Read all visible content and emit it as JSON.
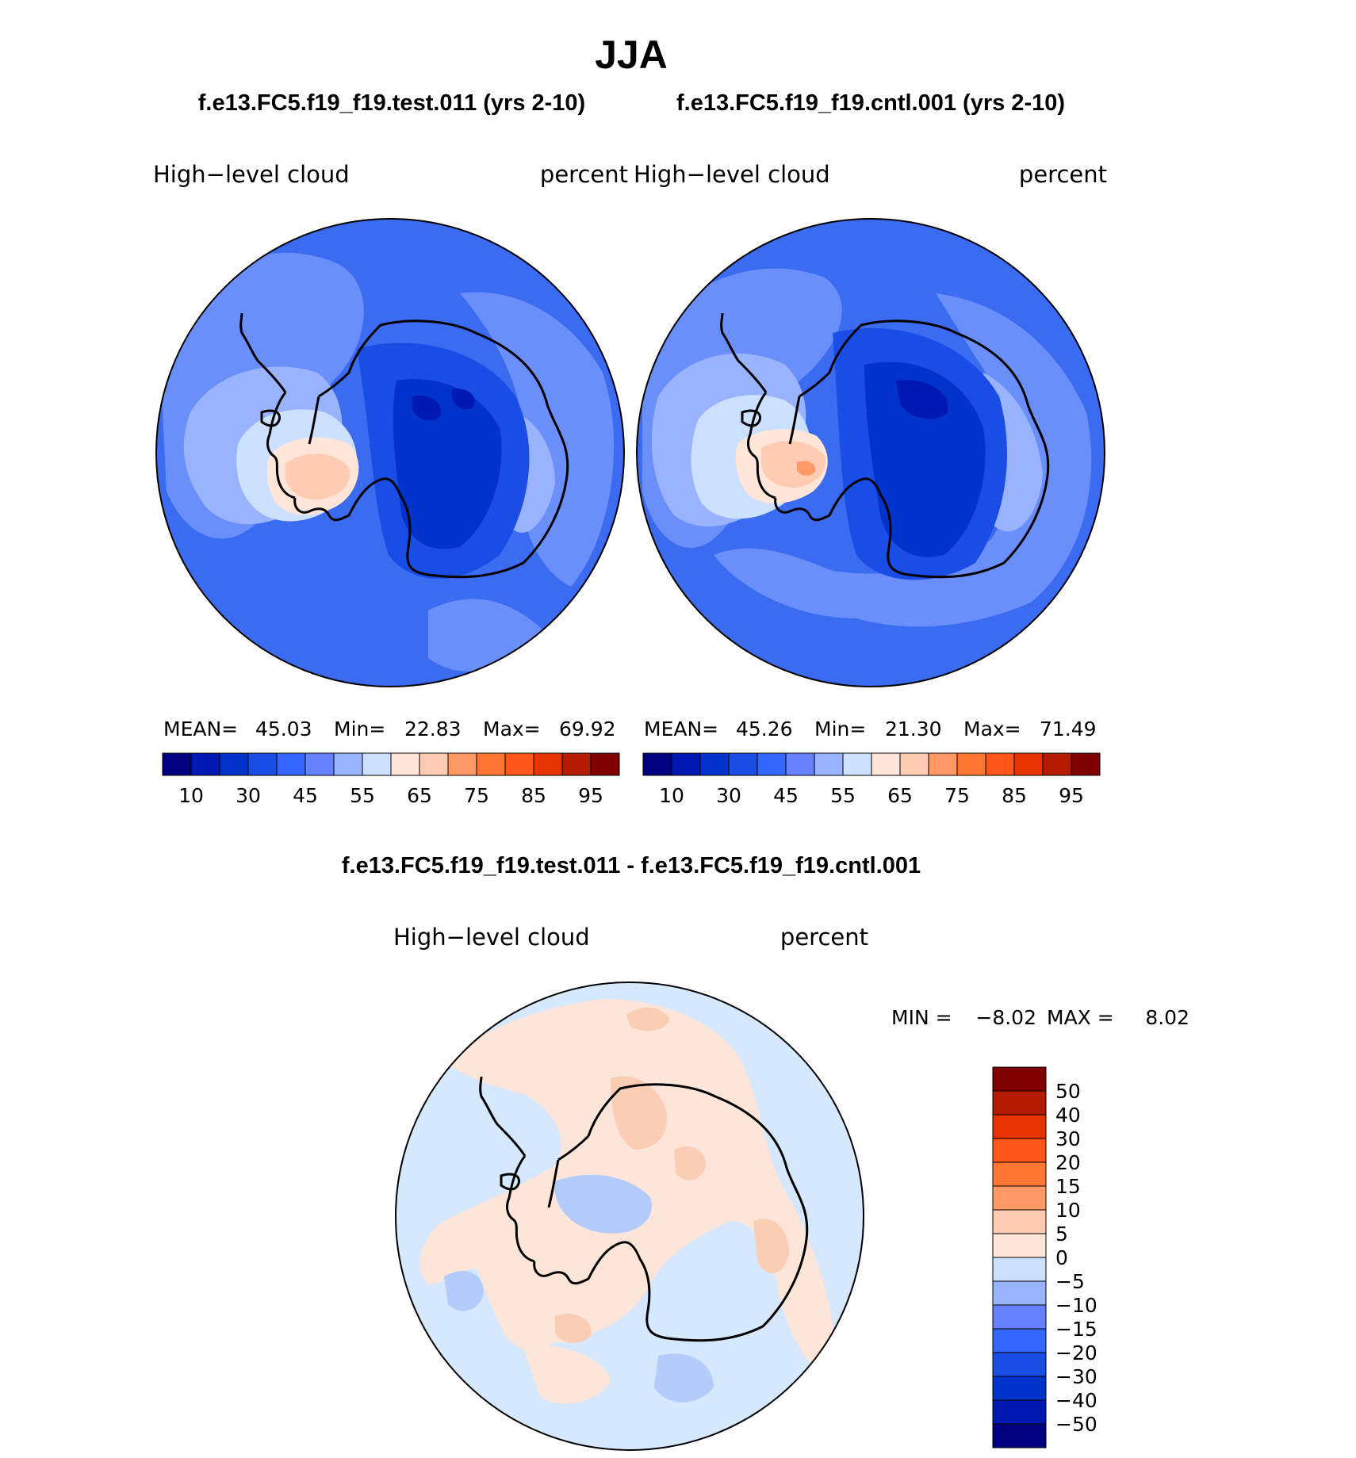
{
  "page_title": "JJA",
  "colors": {
    "scale": [
      "#000080",
      "#0019b3",
      "#0033cc",
      "#1a4de6",
      "#3366ff",
      "#6680ff",
      "#99b3ff",
      "#cce0ff",
      "#ffe6d9",
      "#ffccb3",
      "#ff9966",
      "#ff7733",
      "#ff5519",
      "#e63300",
      "#b31a00",
      "#800000"
    ],
    "diff": [
      "#000080",
      "#0019b3",
      "#0033cc",
      "#1a4de6",
      "#3366ff",
      "#6680ff",
      "#99b3ff",
      "#cce0ff",
      "#ffe6d9",
      "#ffccb3",
      "#ff9966",
      "#ff7733",
      "#ff5519",
      "#e63300",
      "#b31a00",
      "#800000"
    ],
    "ocean_base": "#3a6bf0",
    "land_outline": "#000000"
  },
  "chart_data": [
    {
      "type": "heatmap",
      "case_title": "f.e13.FC5.f19_f19.test.011 (yrs 2-10)",
      "variable": "High−level cloud",
      "units": "percent",
      "stats": {
        "mean_label": "MEAN=",
        "mean": "45.03",
        "min_label": "Min=",
        "min": "22.83",
        "max_label": "Max=",
        "max": "69.92"
      },
      "colorbar_ticks": [
        "10",
        "30",
        "45",
        "55",
        "65",
        "75",
        "85",
        "95"
      ],
      "contour_levels": [
        5,
        10,
        20,
        30,
        40,
        45,
        50,
        55,
        60,
        65,
        70,
        75,
        80,
        85,
        90,
        95
      ]
    },
    {
      "type": "heatmap",
      "case_title": "f.e13.FC5.f19_f19.cntl.001 (yrs 2-10)",
      "variable": "High−level cloud",
      "units": "percent",
      "stats": {
        "mean_label": "MEAN=",
        "mean": "45.26",
        "min_label": "Min=",
        "min": "21.30",
        "max_label": "Max=",
        "max": "71.49"
      },
      "colorbar_ticks": [
        "10",
        "30",
        "45",
        "55",
        "65",
        "75",
        "85",
        "95"
      ],
      "contour_levels": [
        5,
        10,
        20,
        30,
        40,
        45,
        50,
        55,
        60,
        65,
        70,
        75,
        80,
        85,
        90,
        95
      ]
    },
    {
      "type": "heatmap",
      "case_title": "f.e13.FC5.f19_f19.test.011 - f.e13.FC5.f19_f19.cntl.001",
      "variable": "High−level cloud",
      "units": "percent",
      "stats": {
        "min_label": "MIN =",
        "min": "−8.02",
        "max_label": "MAX =",
        "max": "8.02"
      },
      "colorbar_ticks": [
        "50",
        "40",
        "30",
        "20",
        "15",
        "10",
        "5",
        "0",
        "−5",
        "−10",
        "−15",
        "−20",
        "−30",
        "−40",
        "−50"
      ],
      "contour_levels": [
        -50,
        -40,
        -30,
        -20,
        -15,
        -10,
        -5,
        0,
        5,
        10,
        15,
        20,
        30,
        40,
        50
      ]
    }
  ]
}
